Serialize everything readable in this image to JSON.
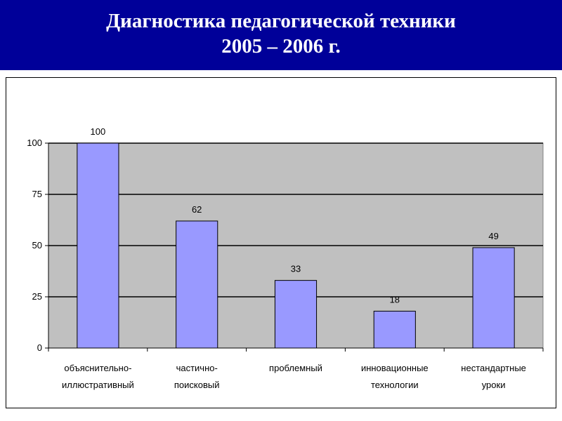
{
  "header": {
    "title_line1": "Диагностика педагогической техники",
    "title_line2": "2005 – 2006 г."
  },
  "colors": {
    "header_bg": "#000099",
    "plot_bg": "#c0c0c0",
    "bar_fill": "#9999ff"
  },
  "chart_data": {
    "type": "bar",
    "title": "",
    "xlabel": "",
    "ylabel": "",
    "categories": [
      [
        "объяснительно-",
        "иллюстративный"
      ],
      [
        "частично-",
        "поисковый"
      ],
      [
        "проблемный"
      ],
      [
        "инновационные",
        "технологии"
      ],
      [
        "нестандартные",
        "уроки"
      ]
    ],
    "values": [
      100,
      62,
      33,
      18,
      49
    ],
    "data_labels": [
      "100",
      "62",
      "33",
      "18",
      "49"
    ],
    "ylim": [
      0,
      100
    ],
    "yticks": [
      0,
      25,
      50,
      75,
      100
    ],
    "grid": true,
    "legend": "none"
  }
}
